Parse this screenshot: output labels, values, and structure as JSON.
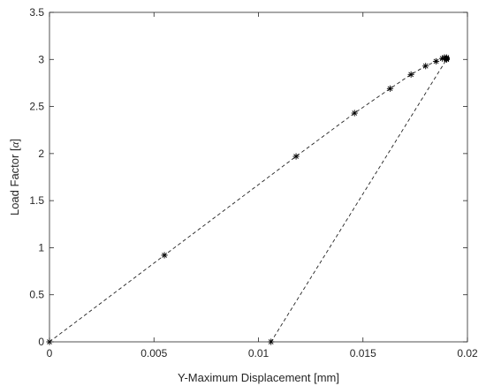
{
  "chart_data": {
    "type": "line",
    "title": "",
    "xlabel": "Y-Maximum Displacement [mm]",
    "ylabel_prefix": "Load Factor [",
    "ylabel_symbol": "α",
    "ylabel_suffix": "]",
    "xlim": [
      0,
      0.02
    ],
    "ylim": [
      0,
      3.5
    ],
    "xticks": [
      0,
      0.005,
      0.01,
      0.015,
      0.02
    ],
    "xtick_labels": [
      "0",
      "0.005",
      "0.01",
      "0.015",
      "0.02"
    ],
    "yticks": [
      0,
      0.5,
      1,
      1.5,
      2,
      2.5,
      3,
      3.5
    ],
    "ytick_labels": [
      "0",
      "0.5",
      "1",
      "1.5",
      "2",
      "2.5",
      "3",
      "3.5"
    ],
    "grid": false,
    "legend": false,
    "line_style": "dashed",
    "marker": "*",
    "color": "#000000",
    "series": [
      {
        "x": [
          0,
          0.0055,
          0.0118,
          0.0146,
          0.0163,
          0.0173,
          0.018,
          0.0185,
          0.0188,
          0.0189,
          0.019,
          0.019,
          0.019,
          0.019,
          0.019,
          0.0106
        ],
        "y": [
          0,
          0.92,
          1.97,
          2.43,
          2.69,
          2.84,
          2.93,
          2.98,
          3.01,
          3.02,
          3.02,
          3.01,
          3.0,
          3.01,
          3.0,
          0
        ]
      }
    ]
  }
}
